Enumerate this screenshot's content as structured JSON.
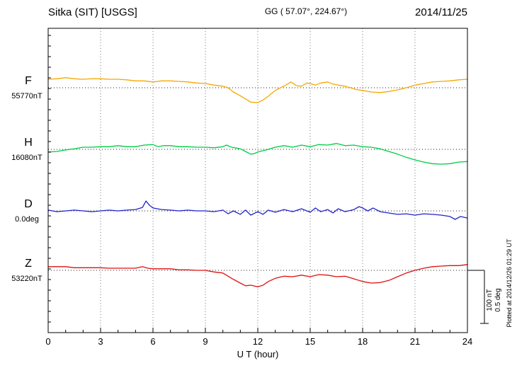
{
  "header": {
    "station": "Sitka (SIT)  [USGS]",
    "coordinates": "GG ( 57.07°, 224.67°)",
    "date": "2014/11/25"
  },
  "axis": {
    "xlabel": "U T (hour)"
  },
  "side": {
    "scale_nt": "100 nT",
    "scale_deg": "0.5 deg",
    "plotted": "Plotted at 2014/12/26 01:29 UT"
  },
  "chart_data": {
    "type": "line",
    "title": "Sitka (SIT) [USGS] magnetogram",
    "date": "2014/11/25",
    "xlabel": "U T (hour)",
    "x_range": [
      0,
      24
    ],
    "x_ticks": [
      0,
      3,
      6,
      9,
      12,
      15,
      18,
      21,
      24
    ],
    "grid": "dotted vertical every 3 hours, dotted horizontal baseline per trace",
    "scale_bar": {
      "nT_per_division": 100,
      "deg_per_division": 0.5
    },
    "series": [
      {
        "name": "F",
        "baseline_label": "55770nT",
        "baseline": 55770,
        "units": "nT",
        "color": "#F5A800",
        "points": [
          [
            0,
            16
          ],
          [
            0.5,
            17
          ],
          [
            1,
            19
          ],
          [
            1.5,
            17
          ],
          [
            2,
            16
          ],
          [
            2.5,
            17
          ],
          [
            3,
            17
          ],
          [
            3.5,
            16
          ],
          [
            4,
            16
          ],
          [
            4.5,
            15
          ],
          [
            5,
            13
          ],
          [
            5.5,
            13
          ],
          [
            6,
            11
          ],
          [
            6.5,
            13
          ],
          [
            7,
            13
          ],
          [
            7.5,
            12
          ],
          [
            8,
            11
          ],
          [
            8.5,
            9
          ],
          [
            9,
            8
          ],
          [
            9.5,
            5
          ],
          [
            10,
            3
          ],
          [
            10.3,
            0
          ],
          [
            10.6,
            -8
          ],
          [
            11,
            -15
          ],
          [
            11.3,
            -21
          ],
          [
            11.6,
            -27
          ],
          [
            12,
            -28
          ],
          [
            12.3,
            -23
          ],
          [
            12.6,
            -16
          ],
          [
            13,
            -5
          ],
          [
            13.3,
            0
          ],
          [
            13.6,
            5
          ],
          [
            13.9,
            11
          ],
          [
            14.2,
            4
          ],
          [
            14.5,
            3
          ],
          [
            14.8,
            9
          ],
          [
            15,
            8
          ],
          [
            15.3,
            5
          ],
          [
            15.6,
            9
          ],
          [
            16,
            11
          ],
          [
            16.3,
            7
          ],
          [
            16.6,
            5
          ],
          [
            17,
            3
          ],
          [
            17.3,
            0
          ],
          [
            17.6,
            -3
          ],
          [
            18,
            -5
          ],
          [
            18.5,
            -8
          ],
          [
            19,
            -9
          ],
          [
            19.5,
            -7
          ],
          [
            20,
            -4
          ],
          [
            20.5,
            0
          ],
          [
            21,
            5
          ],
          [
            21.5,
            8
          ],
          [
            22,
            11
          ],
          [
            22.5,
            12
          ],
          [
            23,
            13
          ],
          [
            23.5,
            15
          ],
          [
            24,
            16
          ]
        ]
      },
      {
        "name": "H",
        "baseline_label": "16080nT",
        "baseline": 16080,
        "units": "nT",
        "color": "#00CC44",
        "points": [
          [
            0,
            -5
          ],
          [
            0.5,
            -4
          ],
          [
            1,
            -1
          ],
          [
            1.5,
            1
          ],
          [
            2,
            4
          ],
          [
            2.5,
            4
          ],
          [
            3,
            5
          ],
          [
            3.5,
            5
          ],
          [
            4,
            7
          ],
          [
            4.5,
            5
          ],
          [
            5,
            5
          ],
          [
            5.5,
            8
          ],
          [
            6,
            9
          ],
          [
            6.3,
            5
          ],
          [
            6.6,
            7
          ],
          [
            7,
            7
          ],
          [
            7.5,
            5
          ],
          [
            8,
            5
          ],
          [
            8.5,
            4
          ],
          [
            9,
            4
          ],
          [
            9.5,
            3
          ],
          [
            10,
            5
          ],
          [
            10.2,
            8
          ],
          [
            10.5,
            4
          ],
          [
            11,
            1
          ],
          [
            11.3,
            -4
          ],
          [
            11.6,
            -9
          ],
          [
            11.8,
            -8
          ],
          [
            12,
            -5
          ],
          [
            12.5,
            -1
          ],
          [
            13,
            4
          ],
          [
            13.5,
            7
          ],
          [
            14,
            4
          ],
          [
            14.5,
            8
          ],
          [
            15,
            5
          ],
          [
            15.5,
            9
          ],
          [
            16,
            8
          ],
          [
            16.5,
            11
          ],
          [
            17,
            7
          ],
          [
            17.5,
            8
          ],
          [
            18,
            5
          ],
          [
            18.5,
            4
          ],
          [
            19,
            1
          ],
          [
            19.5,
            -4
          ],
          [
            20,
            -9
          ],
          [
            20.5,
            -15
          ],
          [
            21,
            -20
          ],
          [
            21.5,
            -24
          ],
          [
            22,
            -27
          ],
          [
            22.5,
            -28
          ],
          [
            23,
            -27
          ],
          [
            23.5,
            -24
          ],
          [
            24,
            -23
          ]
        ]
      },
      {
        "name": "D",
        "baseline_label": "0.0deg",
        "baseline": 0.0,
        "units": "deg",
        "color": "#2222CC",
        "points": [
          [
            0,
            0.007
          ],
          [
            0.5,
            -0.007
          ],
          [
            1,
            0
          ],
          [
            1.5,
            0.007
          ],
          [
            2,
            0
          ],
          [
            2.5,
            -0.007
          ],
          [
            3,
            0
          ],
          [
            3.5,
            0.007
          ],
          [
            4,
            0
          ],
          [
            4.5,
            0.007
          ],
          [
            5,
            0.013
          ],
          [
            5.4,
            0.033
          ],
          [
            5.6,
            0.093
          ],
          [
            5.8,
            0.053
          ],
          [
            6,
            0.027
          ],
          [
            6.5,
            0.013
          ],
          [
            7,
            0.007
          ],
          [
            7.5,
            0
          ],
          [
            8,
            0.007
          ],
          [
            8.5,
            0
          ],
          [
            9,
            0
          ],
          [
            9.5,
            -0.007
          ],
          [
            10,
            0.007
          ],
          [
            10.3,
            -0.027
          ],
          [
            10.6,
            0
          ],
          [
            11,
            -0.033
          ],
          [
            11.3,
            0.007
          ],
          [
            11.6,
            -0.04
          ],
          [
            12,
            -0.007
          ],
          [
            12.3,
            -0.033
          ],
          [
            12.6,
            0.007
          ],
          [
            13,
            -0.013
          ],
          [
            13.5,
            0.013
          ],
          [
            14,
            -0.007
          ],
          [
            14.5,
            0.02
          ],
          [
            15,
            -0.013
          ],
          [
            15.3,
            0.027
          ],
          [
            15.6,
            -0.007
          ],
          [
            16,
            0.013
          ],
          [
            16.3,
            -0.02
          ],
          [
            16.6,
            0.02
          ],
          [
            17,
            -0.007
          ],
          [
            17.5,
            0.013
          ],
          [
            17.8,
            0.04
          ],
          [
            18,
            0.027
          ],
          [
            18.3,
            0
          ],
          [
            18.6,
            0.027
          ],
          [
            19,
            -0.007
          ],
          [
            19.5,
            -0.02
          ],
          [
            20,
            -0.033
          ],
          [
            20.5,
            -0.027
          ],
          [
            21,
            -0.04
          ],
          [
            21.5,
            -0.027
          ],
          [
            22,
            -0.033
          ],
          [
            22.5,
            -0.04
          ],
          [
            23,
            -0.053
          ],
          [
            23.3,
            -0.08
          ],
          [
            23.6,
            -0.053
          ],
          [
            24,
            -0.067
          ]
        ]
      },
      {
        "name": "Z",
        "baseline_label": "53220nT",
        "baseline": 53220,
        "units": "nT",
        "color": "#DD1111",
        "points": [
          [
            0,
            7
          ],
          [
            0.5,
            7
          ],
          [
            1,
            7
          ],
          [
            1.5,
            5
          ],
          [
            2,
            5
          ],
          [
            2.5,
            5
          ],
          [
            3,
            5
          ],
          [
            3.5,
            4
          ],
          [
            4,
            4
          ],
          [
            4.5,
            4
          ],
          [
            5,
            4
          ],
          [
            5.4,
            7
          ],
          [
            5.7,
            4
          ],
          [
            6,
            3
          ],
          [
            6.5,
            3
          ],
          [
            7,
            3
          ],
          [
            7.5,
            1
          ],
          [
            8,
            1
          ],
          [
            8.5,
            0
          ],
          [
            9,
            0
          ],
          [
            9.5,
            -3
          ],
          [
            10,
            -5
          ],
          [
            10.5,
            -15
          ],
          [
            11,
            -24
          ],
          [
            11.3,
            -29
          ],
          [
            11.6,
            -28
          ],
          [
            12,
            -31
          ],
          [
            12.3,
            -28
          ],
          [
            12.6,
            -21
          ],
          [
            13,
            -15
          ],
          [
            13.5,
            -11
          ],
          [
            14,
            -12
          ],
          [
            14.5,
            -9
          ],
          [
            15,
            -12
          ],
          [
            15.5,
            -8
          ],
          [
            16,
            -9
          ],
          [
            16.5,
            -12
          ],
          [
            17,
            -11
          ],
          [
            17.5,
            -16
          ],
          [
            18,
            -21
          ],
          [
            18.5,
            -24
          ],
          [
            19,
            -23
          ],
          [
            19.5,
            -19
          ],
          [
            20,
            -12
          ],
          [
            20.5,
            -5
          ],
          [
            21,
            0
          ],
          [
            21.5,
            4
          ],
          [
            22,
            7
          ],
          [
            22.5,
            8
          ],
          [
            23,
            9
          ],
          [
            23.5,
            9
          ],
          [
            24,
            11
          ]
        ]
      }
    ]
  }
}
